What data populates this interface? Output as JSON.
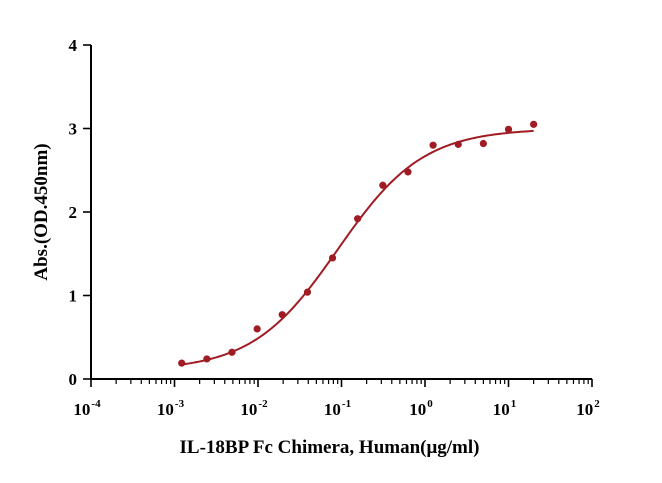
{
  "chart_data": {
    "type": "scatter",
    "title": "",
    "xlabel": "IL-18BP Fc Chimera, Human(μg/ml)",
    "ylabel": "Abs.(OD.450nm)",
    "x_scale": "log10",
    "xlim": [
      0.0001,
      100
    ],
    "ylim": [
      0,
      4
    ],
    "x_ticks": [
      {
        "base": "10",
        "exp": "-4"
      },
      {
        "base": "10",
        "exp": "-3"
      },
      {
        "base": "10",
        "exp": "-2"
      },
      {
        "base": "10",
        "exp": "-1"
      },
      {
        "base": "10",
        "exp": "0"
      },
      {
        "base": "10",
        "exp": "1"
      },
      {
        "base": "10",
        "exp": "2"
      }
    ],
    "y_ticks": [
      "0",
      "1",
      "2",
      "3",
      "4"
    ],
    "grid": false,
    "legend": "none",
    "colors": {
      "series": "#a01c24",
      "axis": "#000000"
    },
    "series": [
      {
        "x": [
          0.00122,
          0.00244,
          0.00488,
          0.00977,
          0.0195,
          0.0391,
          0.0781,
          0.156,
          0.3125,
          0.625,
          1.25,
          2.5,
          5,
          10,
          20
        ],
        "y": [
          0.19,
          0.24,
          0.32,
          0.6,
          0.77,
          1.04,
          1.45,
          1.92,
          2.32,
          2.48,
          2.8,
          2.81,
          2.82,
          2.99,
          3.05
        ]
      }
    ],
    "fit": {
      "model": "4PL",
      "bottom": 0.1,
      "top": 3.0,
      "ec50": 0.09,
      "hill": 0.85,
      "x_range": [
        0.00122,
        20
      ]
    }
  }
}
